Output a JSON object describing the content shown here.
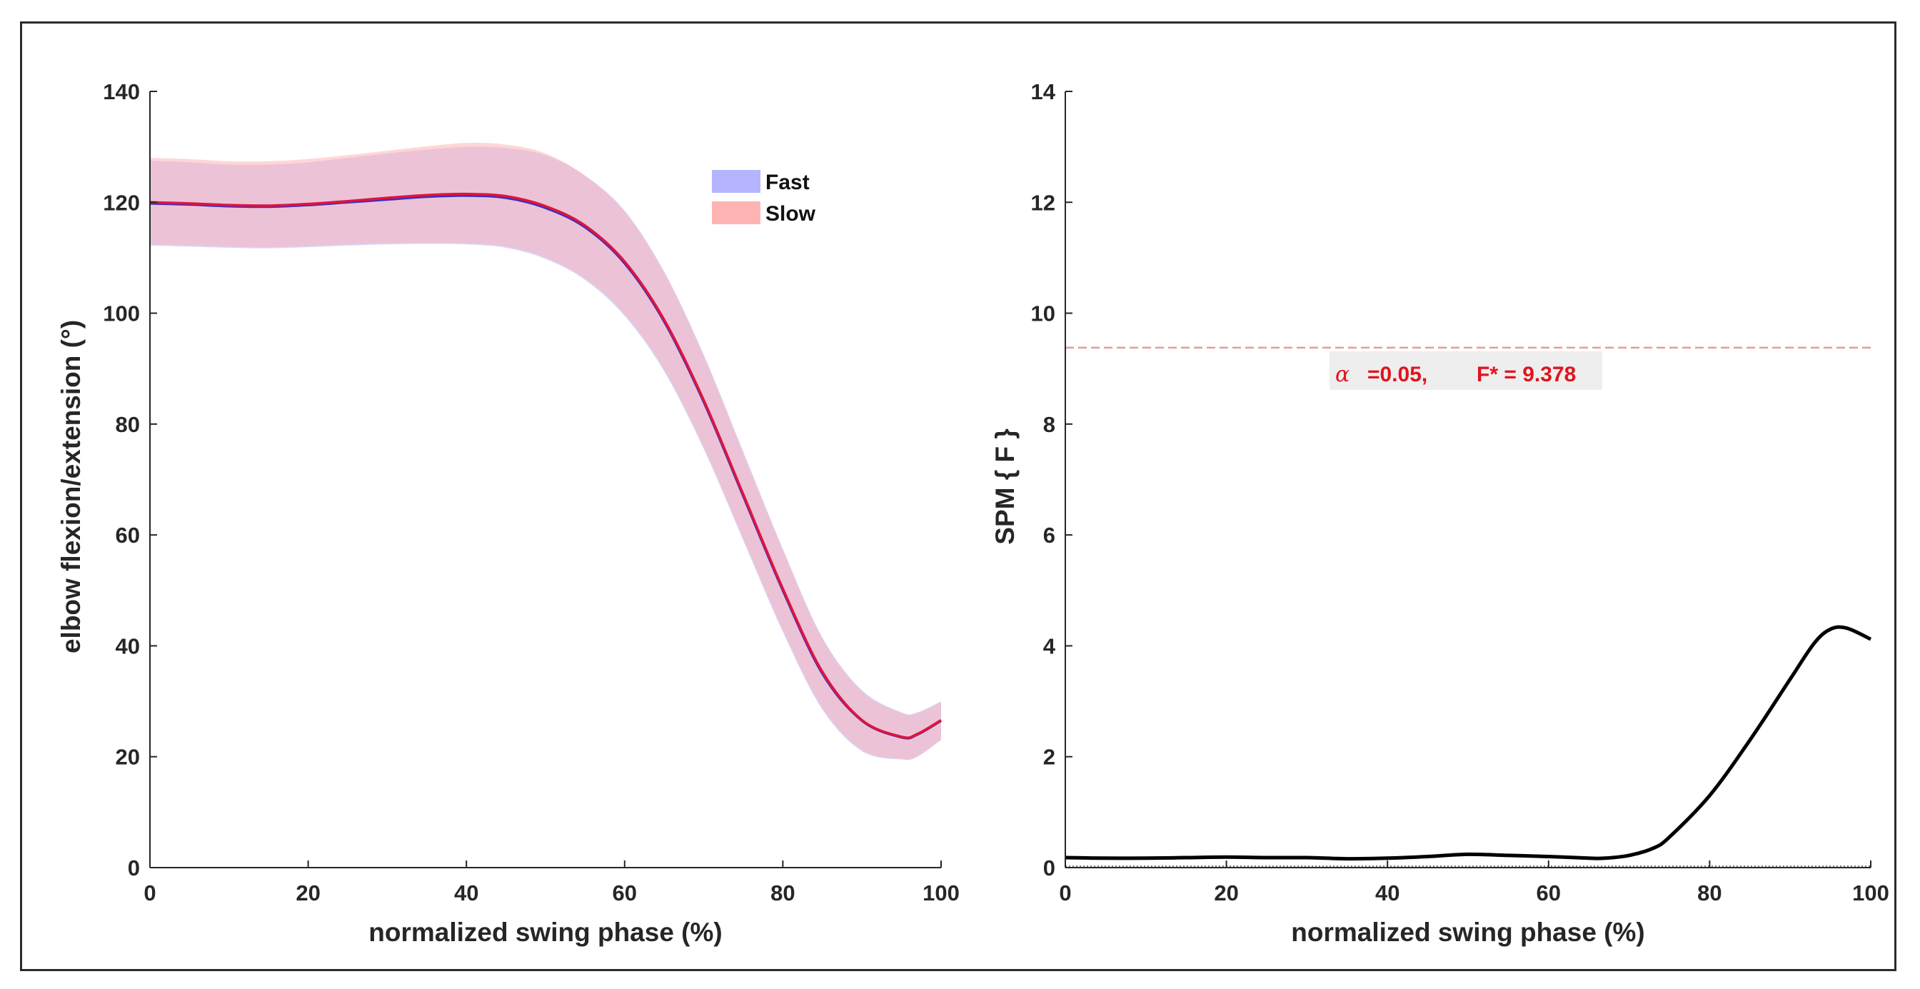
{
  "chart_data": [
    {
      "type": "line",
      "title": "",
      "xlabel": "normalized swing phase (%)",
      "ylabel": "elbow flexion/extension (°)",
      "xlim": [
        0,
        100
      ],
      "ylim": [
        0,
        140
      ],
      "xticks": [
        "0",
        "20",
        "40",
        "60",
        "80",
        "100"
      ],
      "yticks": [
        "0",
        "20",
        "40",
        "60",
        "80",
        "100",
        "120",
        "140"
      ],
      "legend_position": "top-right",
      "x": [
        0,
        5,
        10,
        15,
        20,
        25,
        30,
        35,
        40,
        45,
        50,
        55,
        60,
        65,
        70,
        75,
        80,
        85,
        90,
        95,
        97,
        100
      ],
      "series": [
        {
          "name": "Fast",
          "color": "#b4b4ff",
          "line_color": "#3b2ec2",
          "mean": [
            119.8,
            119.6,
            119.3,
            119.2,
            119.5,
            120.0,
            120.5,
            121.0,
            121.2,
            120.8,
            119.0,
            115.5,
            109.0,
            98.5,
            84.0,
            67.0,
            50.0,
            35.0,
            26.5,
            23.5,
            24.0,
            26.5
          ],
          "upper": [
            127.5,
            127.2,
            126.8,
            126.8,
            127.2,
            128.0,
            128.8,
            129.5,
            130.0,
            129.8,
            128.5,
            124.8,
            118.5,
            107.5,
            92.5,
            75.0,
            57.5,
            41.5,
            32.0,
            28.0,
            28.0,
            30.0
          ],
          "lower": [
            112.2,
            112.0,
            111.8,
            111.7,
            111.9,
            112.2,
            112.4,
            112.5,
            112.4,
            111.8,
            109.8,
            106.0,
            99.5,
            89.5,
            75.5,
            59.0,
            42.5,
            28.5,
            21.0,
            19.5,
            20.0,
            23.0
          ]
        },
        {
          "name": "Slow",
          "color": "#ffb4b4",
          "line_color": "#e0143c",
          "mean": [
            120.0,
            119.8,
            119.5,
            119.4,
            119.7,
            120.2,
            120.8,
            121.3,
            121.5,
            121.1,
            119.3,
            115.8,
            109.3,
            98.8,
            84.3,
            67.3,
            50.3,
            35.3,
            26.6,
            23.6,
            24.1,
            26.6
          ],
          "upper": [
            128.0,
            127.8,
            127.4,
            127.4,
            127.8,
            128.5,
            129.3,
            130.1,
            130.7,
            130.4,
            128.8,
            124.8,
            118.3,
            107.3,
            92.3,
            74.8,
            57.3,
            41.3,
            31.8,
            27.9,
            27.9,
            29.8
          ],
          "lower": [
            112.4,
            112.2,
            112.0,
            111.9,
            112.1,
            112.4,
            112.6,
            112.7,
            112.6,
            112.0,
            110.0,
            106.2,
            99.8,
            89.8,
            75.8,
            59.3,
            42.8,
            28.8,
            21.2,
            19.6,
            20.1,
            23.1
          ]
        }
      ]
    },
    {
      "type": "line",
      "title": "",
      "xlabel": "normalized swing phase (%)",
      "ylabel": "SPM { F }",
      "xlim": [
        0,
        100
      ],
      "ylim": [
        0,
        14
      ],
      "xticks": [
        "0",
        "20",
        "40",
        "60",
        "80",
        "100"
      ],
      "yticks": [
        "0",
        "2",
        "4",
        "6",
        "8",
        "10",
        "12",
        "14"
      ],
      "threshold": 9.378,
      "threshold_color": "#e89a9a",
      "annotation": {
        "alpha_symbol": "α",
        "alpha_text": "=0.05,",
        "f_text": "F* = 9.378"
      },
      "x": [
        0,
        5,
        10,
        15,
        20,
        25,
        30,
        35,
        40,
        45,
        50,
        55,
        60,
        65,
        67,
        70,
        73,
        75,
        80,
        85,
        90,
        93,
        95,
        97,
        100
      ],
      "values": [
        0.18,
        0.17,
        0.17,
        0.18,
        0.19,
        0.18,
        0.18,
        0.16,
        0.17,
        0.2,
        0.24,
        0.22,
        0.2,
        0.17,
        0.17,
        0.22,
        0.35,
        0.55,
        1.3,
        2.3,
        3.4,
        4.05,
        4.3,
        4.32,
        4.12
      ]
    }
  ]
}
